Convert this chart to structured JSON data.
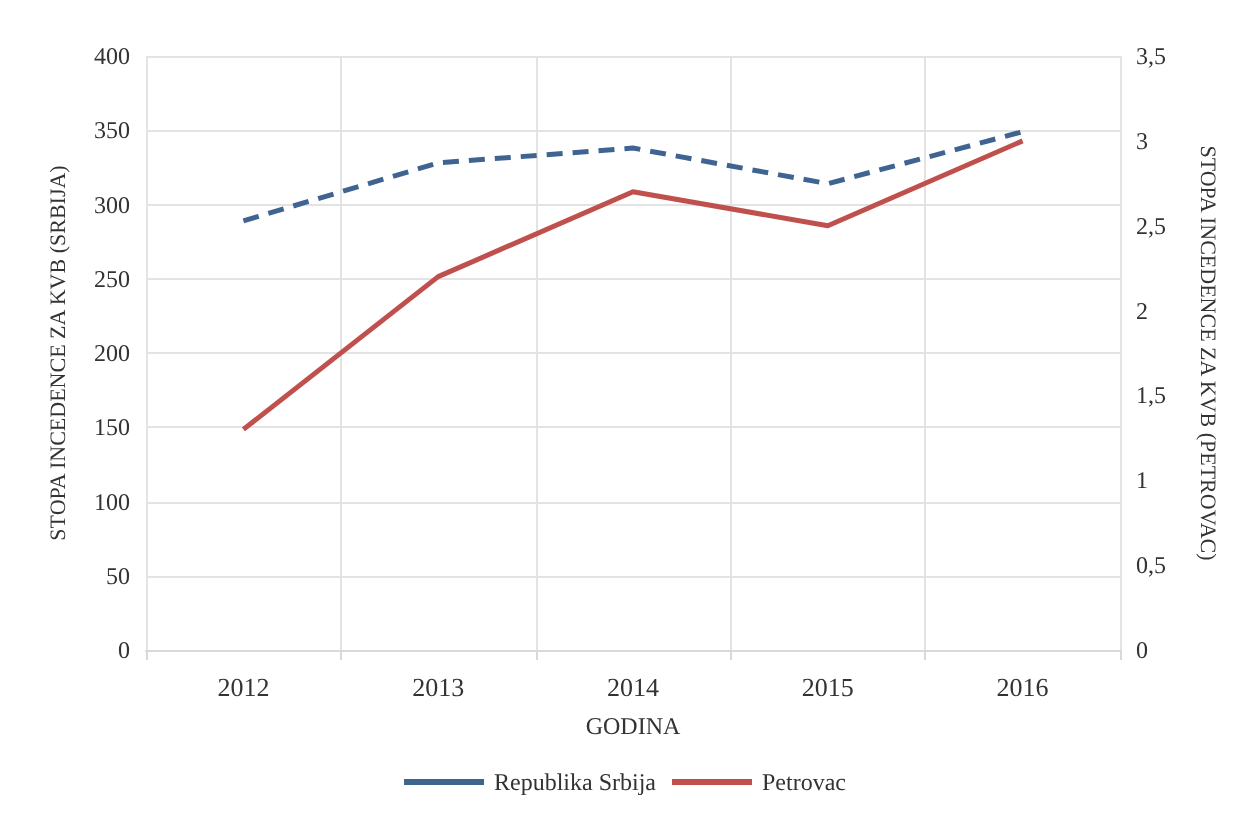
{
  "chart_data": {
    "type": "line",
    "xlabel": "GODINA",
    "ylabel": "STOPA INCEDENCE ZA KVB (SRBIJA)",
    "y2label": "STOPA INCEDENCE ZA KVB (PETROVAC)",
    "categories": [
      "2012",
      "2013",
      "2014",
      "2015",
      "2016"
    ],
    "series": [
      {
        "name": "Republika Srbija",
        "color": "#3f6491",
        "line_style": "dashed",
        "values": [
          289,
          328,
          338,
          314,
          349
        ]
      },
      {
        "name": "Petrovac",
        "color": "#c0504d",
        "line_style": "solid",
        "axis": "y2",
        "values": [
          1.3,
          2.2,
          2.7,
          2.5,
          3.0
        ]
      }
    ],
    "ylim": [
      0,
      400
    ],
    "yticks": [
      0,
      50,
      100,
      150,
      200,
      250,
      300,
      350,
      400
    ],
    "y2lim": [
      0,
      3.5
    ],
    "y2ticks": [
      0,
      {
        "value": 0.5,
        "label": "0,5"
      },
      1,
      {
        "value": 1.5,
        "label": "1,5"
      },
      2,
      {
        "value": 2.5,
        "label": "2,5"
      },
      3,
      {
        "value": 3.5,
        "label": "3,5"
      }
    ],
    "grid": true,
    "legend": "bottom",
    "marker": "none"
  }
}
